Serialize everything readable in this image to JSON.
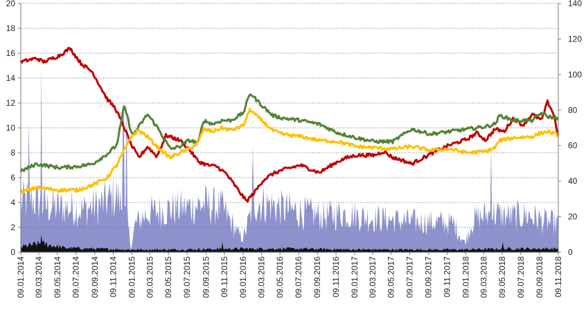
{
  "chart_data": {
    "type": "line",
    "title": "",
    "grid": true,
    "legend": "none",
    "x": {
      "type": "date",
      "range": [
        "09.01.2014",
        "09.11.2018"
      ],
      "tick_labels": [
        "09.01.2014",
        "09.03.2014",
        "09.05.2014",
        "09.07.2014",
        "09.09.2014",
        "09.11.2014",
        "09.01.2015",
        "09.03.2015",
        "09.05.2015",
        "09.07.2015",
        "09.09.2015",
        "09.11.2015",
        "09.01.2016",
        "09.03.2016",
        "09.05.2016",
        "09.07.2016",
        "09.09.2016",
        "09.11.2016",
        "09.01.2017",
        "09.03.2017",
        "09.05.2017",
        "09.07.2017",
        "09.09.2017",
        "09.11.2017",
        "09.01.2018",
        "09.03.2018",
        "09.05.2018",
        "09.07.2018",
        "09.09.2018",
        "09.11.2018"
      ]
    },
    "y_left": {
      "ylim": [
        0,
        20
      ],
      "tick_labels": [
        "0",
        "2",
        "4",
        "6",
        "8",
        "10",
        "12",
        "14",
        "16",
        "18",
        "20"
      ]
    },
    "y_right": {
      "ylim": [
        0,
        140
      ],
      "tick_labels": [
        "0",
        "20",
        "40",
        "60",
        "80",
        "100",
        "120",
        "140"
      ]
    },
    "series": [
      {
        "key": "red",
        "axis": "left",
        "style": "line",
        "color": "#c00000",
        "dates": [
          "2014-01-09",
          "2014-03-01",
          "2014-03-25",
          "2014-05-15",
          "2014-06-20",
          "2014-07-25",
          "2014-09-01",
          "2014-10-20",
          "2014-11-15",
          "2014-12-15",
          "2015-01-05",
          "2015-02-01",
          "2015-03-01",
          "2015-04-01",
          "2015-05-01",
          "2015-06-15",
          "2015-07-15",
          "2015-08-15",
          "2015-09-15",
          "2015-10-15",
          "2015-11-15",
          "2015-12-15",
          "2016-01-20",
          "2016-02-15",
          "2016-03-15",
          "2016-04-15",
          "2016-05-15",
          "2016-07-15",
          "2016-09-15",
          "2016-11-15",
          "2016-12-15",
          "2017-01-15",
          "2017-03-15",
          "2017-04-15",
          "2017-05-15",
          "2017-06-15",
          "2017-07-15",
          "2017-09-15",
          "2017-11-15",
          "2018-01-15",
          "2018-02-15",
          "2018-03-15",
          "2018-04-15",
          "2018-05-15",
          "2018-06-15",
          "2018-07-15",
          "2018-08-15",
          "2018-09-15",
          "2018-10-05",
          "2018-10-25",
          "2018-11-09"
        ],
        "values": [
          15.3,
          15.6,
          15.3,
          15.8,
          16.4,
          15.2,
          14.5,
          12.3,
          11.6,
          10.0,
          8.7,
          7.6,
          8.5,
          7.7,
          9.4,
          9.0,
          8.3,
          7.3,
          7.0,
          6.9,
          6.3,
          5.3,
          4.1,
          4.8,
          5.8,
          6.3,
          6.6,
          7.0,
          6.4,
          7.3,
          7.6,
          7.8,
          7.8,
          8.1,
          7.6,
          7.4,
          7.1,
          7.9,
          8.6,
          9.1,
          9.6,
          9.0,
          9.9,
          9.7,
          10.8,
          10.2,
          11.1,
          10.6,
          12.1,
          11.1,
          9.3
        ]
      },
      {
        "key": "green",
        "axis": "left",
        "style": "line",
        "color": "#548235",
        "dates": [
          "2014-01-09",
          "2014-03-01",
          "2014-05-15",
          "2014-07-15",
          "2014-09-01",
          "2014-10-20",
          "2014-11-20",
          "2014-12-05",
          "2014-12-15",
          "2015-01-10",
          "2015-02-01",
          "2015-03-01",
          "2015-04-01",
          "2015-05-15",
          "2015-06-15",
          "2015-07-15",
          "2015-08-15",
          "2015-09-01",
          "2015-10-01",
          "2015-11-01",
          "2015-12-01",
          "2016-01-10",
          "2016-02-01",
          "2016-02-20",
          "2016-03-15",
          "2016-04-15",
          "2016-05-15",
          "2016-07-15",
          "2016-09-15",
          "2016-11-15",
          "2017-01-15",
          "2017-03-15",
          "2017-05-15",
          "2017-07-15",
          "2017-09-15",
          "2017-11-15",
          "2018-01-15",
          "2018-03-15",
          "2018-04-15",
          "2018-05-01",
          "2018-06-15",
          "2018-08-15",
          "2018-09-15",
          "2018-10-05",
          "2018-11-09"
        ],
        "values": [
          6.5,
          7.1,
          6.8,
          6.9,
          7.1,
          7.9,
          8.6,
          10.5,
          11.8,
          9.4,
          10.1,
          11.1,
          10.1,
          8.3,
          8.5,
          9.0,
          8.8,
          10.6,
          10.3,
          10.6,
          10.6,
          11.2,
          12.8,
          12.3,
          11.7,
          11.0,
          10.8,
          10.6,
          10.3,
          9.6,
          9.2,
          8.9,
          8.9,
          9.9,
          9.5,
          9.7,
          9.9,
          10.1,
          10.3,
          11.0,
          10.6,
          10.6,
          11.2,
          10.9,
          10.8
        ]
      },
      {
        "key": "yellow",
        "axis": "left",
        "style": "line",
        "color": "#ffc000",
        "dates": [
          "2014-01-09",
          "2014-03-01",
          "2014-05-15",
          "2014-07-15",
          "2014-09-01",
          "2014-10-20",
          "2014-11-20",
          "2014-12-15",
          "2015-01-10",
          "2015-02-01",
          "2015-03-01",
          "2015-04-01",
          "2015-05-15",
          "2015-06-15",
          "2015-07-15",
          "2015-08-15",
          "2015-09-01",
          "2015-10-01",
          "2015-11-01",
          "2015-12-01",
          "2016-01-10",
          "2016-02-01",
          "2016-02-20",
          "2016-03-15",
          "2016-04-15",
          "2016-05-15",
          "2016-07-15",
          "2016-09-15",
          "2016-11-15",
          "2017-01-15",
          "2017-03-15",
          "2017-05-15",
          "2017-07-15",
          "2017-09-15",
          "2017-11-15",
          "2018-01-15",
          "2018-03-15",
          "2018-04-15",
          "2018-05-01",
          "2018-06-15",
          "2018-08-15",
          "2018-09-15",
          "2018-10-05",
          "2018-11-09"
        ],
        "values": [
          4.8,
          5.2,
          5.0,
          5.0,
          5.4,
          6.0,
          7.0,
          8.2,
          9.4,
          9.8,
          9.3,
          8.5,
          7.6,
          8.0,
          8.3,
          8.8,
          9.9,
          9.7,
          10.0,
          9.8,
          10.2,
          11.5,
          11.0,
          10.5,
          9.8,
          9.5,
          9.3,
          9.0,
          8.9,
          8.5,
          8.4,
          8.3,
          8.5,
          8.2,
          8.3,
          8.0,
          8.1,
          8.4,
          9.0,
          9.2,
          9.3,
          9.6,
          9.7,
          9.4
        ]
      },
      {
        "key": "blue",
        "axis": "right",
        "style": "area",
        "color": "#8e92cc",
        "noise": true,
        "dates": [
          "2014-01-09",
          "2014-02-10",
          "2014-04-01",
          "2014-06-01",
          "2014-08-01",
          "2014-10-01",
          "2014-11-20",
          "2014-12-25",
          "2015-01-06",
          "2015-01-20",
          "2015-03-01",
          "2015-05-01",
          "2015-07-01",
          "2015-09-01",
          "2015-11-01",
          "2015-12-25",
          "2016-01-10",
          "2016-02-15",
          "2016-04-01",
          "2016-06-01",
          "2016-08-01",
          "2016-10-01",
          "2016-12-01",
          "2017-02-01",
          "2017-04-01",
          "2017-06-01",
          "2017-08-01",
          "2017-10-01",
          "2017-12-01",
          "2018-01-06",
          "2018-02-01",
          "2018-04-01",
          "2018-06-01",
          "2018-08-01",
          "2018-10-01",
          "2018-11-09"
        ],
        "values": [
          28,
          30,
          26,
          25,
          24,
          27,
          32,
          18,
          2,
          16,
          22,
          24,
          25,
          27,
          25,
          10,
          8,
          28,
          27,
          24,
          22,
          20,
          22,
          20,
          19,
          18,
          17,
          17,
          16,
          5,
          18,
          22,
          20,
          21,
          17,
          16
        ]
      },
      {
        "key": "black",
        "axis": "right",
        "style": "area",
        "color": "#111111",
        "noise": true,
        "dates": [
          "2014-01-09",
          "2014-03-15",
          "2014-06-01",
          "2014-09-01",
          "2015-01-01",
          "2015-06-01",
          "2016-01-01",
          "2016-06-01",
          "2017-01-01",
          "2017-06-01",
          "2018-01-01",
          "2018-06-01",
          "2018-11-09"
        ],
        "values": [
          3,
          5,
          2.5,
          2,
          1.5,
          1.5,
          2,
          2,
          1.5,
          1.5,
          1.5,
          2,
          2
        ]
      }
    ],
    "spikes": [
      {
        "series": "blue",
        "date": "2014-03-17",
        "value": 104
      },
      {
        "series": "blue",
        "date": "2014-02-05",
        "value": 73
      },
      {
        "series": "blue",
        "date": "2014-12-12",
        "value": 80
      },
      {
        "series": "blue",
        "date": "2014-12-22",
        "value": 84
      },
      {
        "series": "blue",
        "date": "2016-02-10",
        "value": 60
      },
      {
        "series": "blue",
        "date": "2018-04-03",
        "value": 60
      },
      {
        "series": "black",
        "date": "2014-03-18",
        "value": 10
      },
      {
        "series": "black",
        "date": "2015-11-02",
        "value": 6
      },
      {
        "series": "black",
        "date": "2018-05-10",
        "value": 6
      }
    ]
  }
}
